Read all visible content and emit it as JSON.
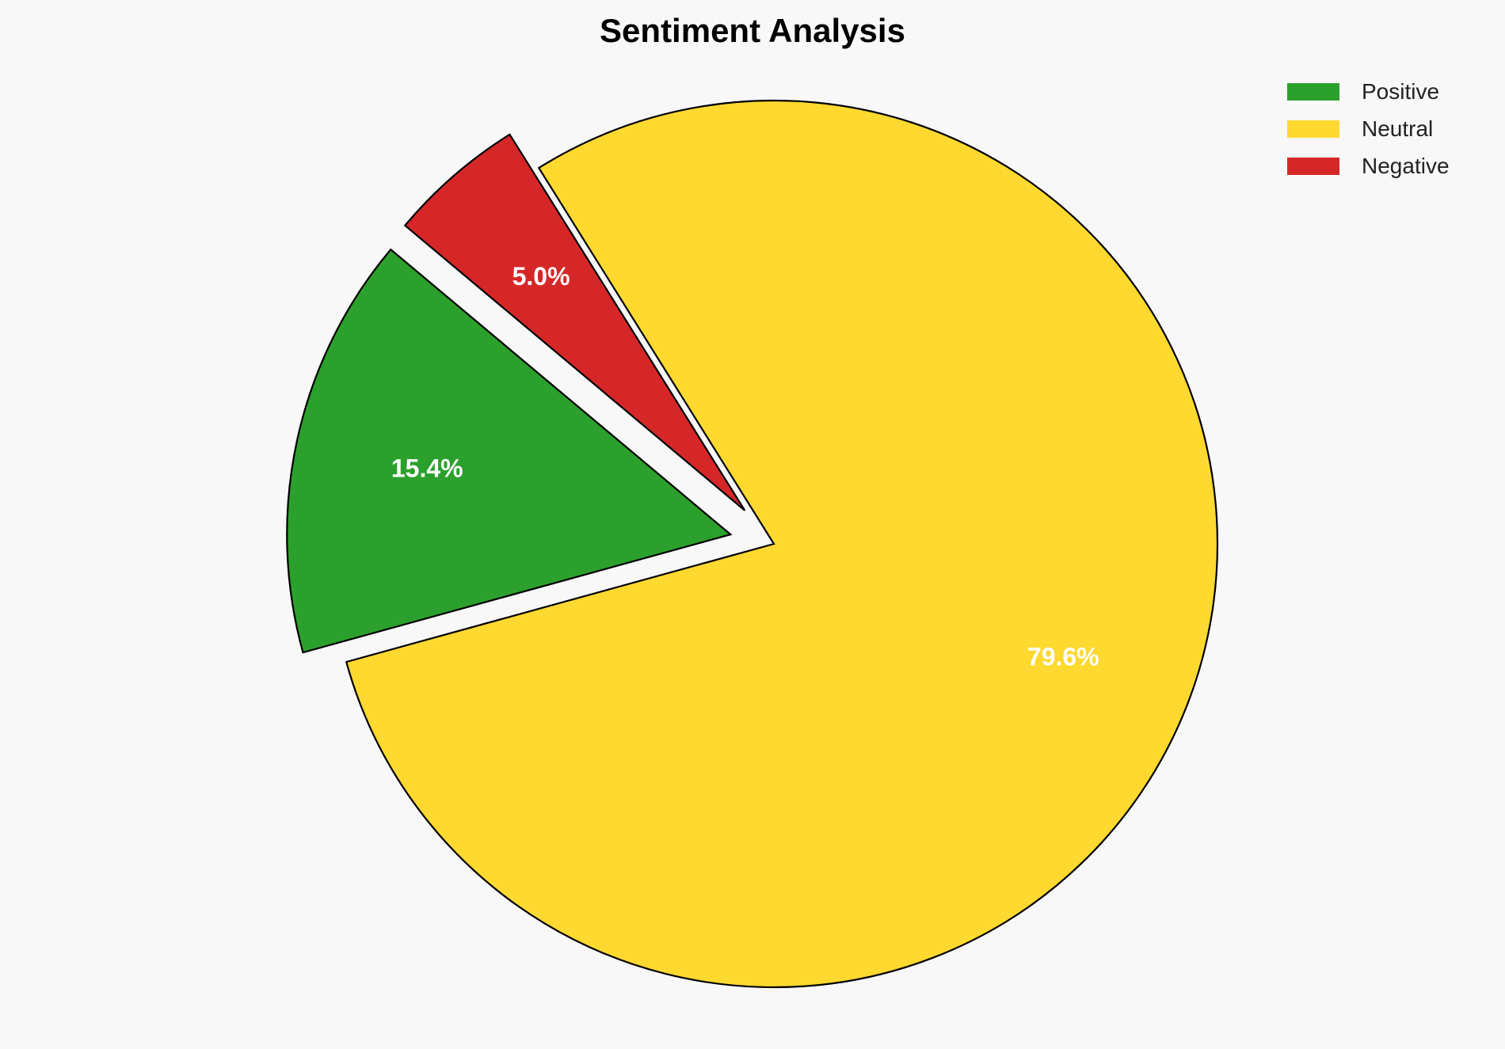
{
  "chart_data": {
    "type": "pie",
    "title": "Sentiment Analysis",
    "categories": [
      "Positive",
      "Neutral",
      "Negative"
    ],
    "values": [
      15.4,
      79.6,
      5.0
    ],
    "labels": [
      "15.4%",
      "79.6%",
      "5.0%"
    ],
    "colors": [
      "#2ca02c",
      "#ffd92f",
      "#d62728"
    ],
    "explode": [
      0.1,
      0,
      0.1
    ],
    "start_angle": 140,
    "direction": "counterclockwise",
    "legend_position": "top-right",
    "edge_color": "#000000",
    "label_color": "#ffffff",
    "background": "#f8f8f8"
  }
}
